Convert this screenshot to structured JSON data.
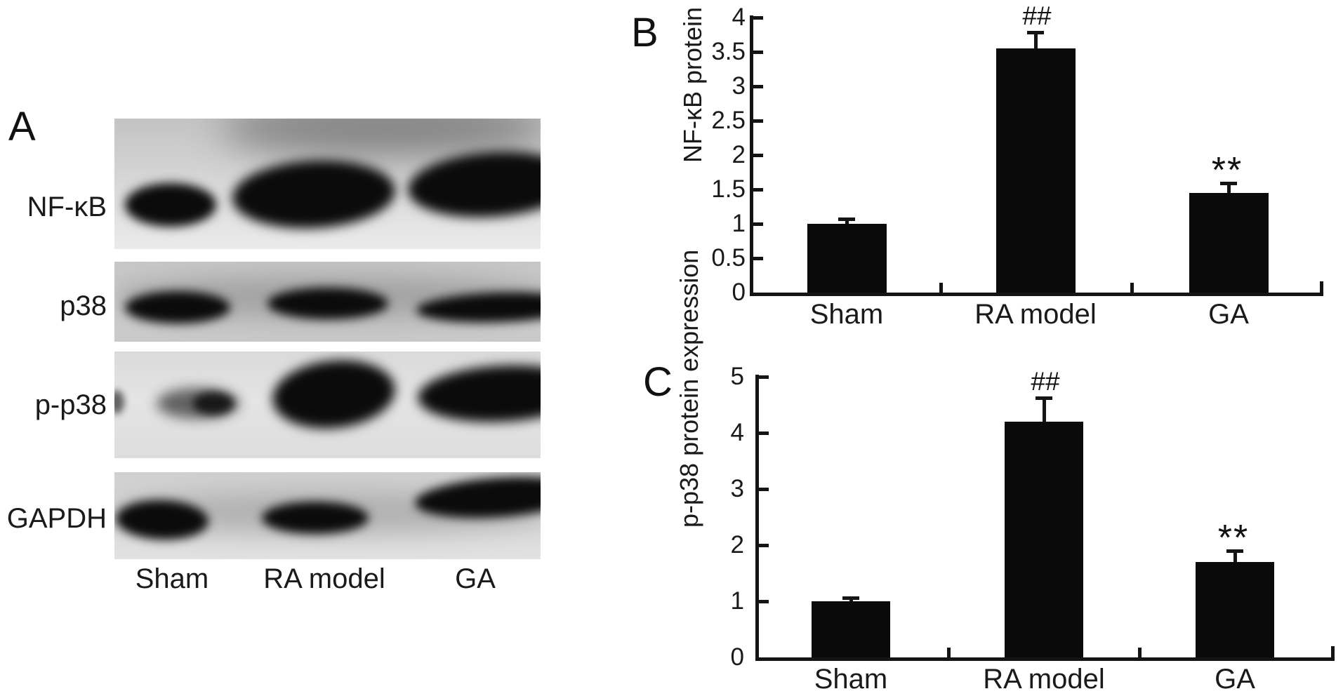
{
  "figure": {
    "panel_a": {
      "label": "A",
      "proteins": [
        "NF-κB",
        "p38",
        "p-p38",
        "GAPDH"
      ],
      "lanes": [
        "Sham",
        "RA model",
        "GA"
      ]
    }
  },
  "chart_data": [
    {
      "panel": "B",
      "type": "bar",
      "title": "",
      "ylabel": "NF-κB protein expression",
      "xlabel": "",
      "categories": [
        "Sham",
        "RA model",
        "GA"
      ],
      "values": [
        1.0,
        3.55,
        1.45
      ],
      "errors": [
        0.07,
        0.24,
        0.14
      ],
      "annotations": [
        "",
        "##",
        "**"
      ],
      "ylim": [
        0,
        4
      ],
      "yticks": [
        "0",
        "0.5",
        "1",
        "1.5",
        "2",
        "2.5",
        "3",
        "3.5",
        "4"
      ],
      "bar_color": "#0a0a0a",
      "grid": false,
      "legend": "none"
    },
    {
      "panel": "C",
      "type": "bar",
      "title": "",
      "ylabel": "p-p38 protein expression",
      "xlabel": "",
      "categories": [
        "Sham",
        "RA model",
        "GA"
      ],
      "values": [
        1.0,
        4.2,
        1.7
      ],
      "errors": [
        0.06,
        0.43,
        0.2
      ],
      "annotations": [
        "",
        "##",
        "**"
      ],
      "ylim": [
        0,
        5
      ],
      "yticks": [
        "0",
        "1",
        "2",
        "3",
        "4",
        "5"
      ],
      "bar_color": "#0a0a0a",
      "grid": false,
      "legend": "none"
    }
  ]
}
